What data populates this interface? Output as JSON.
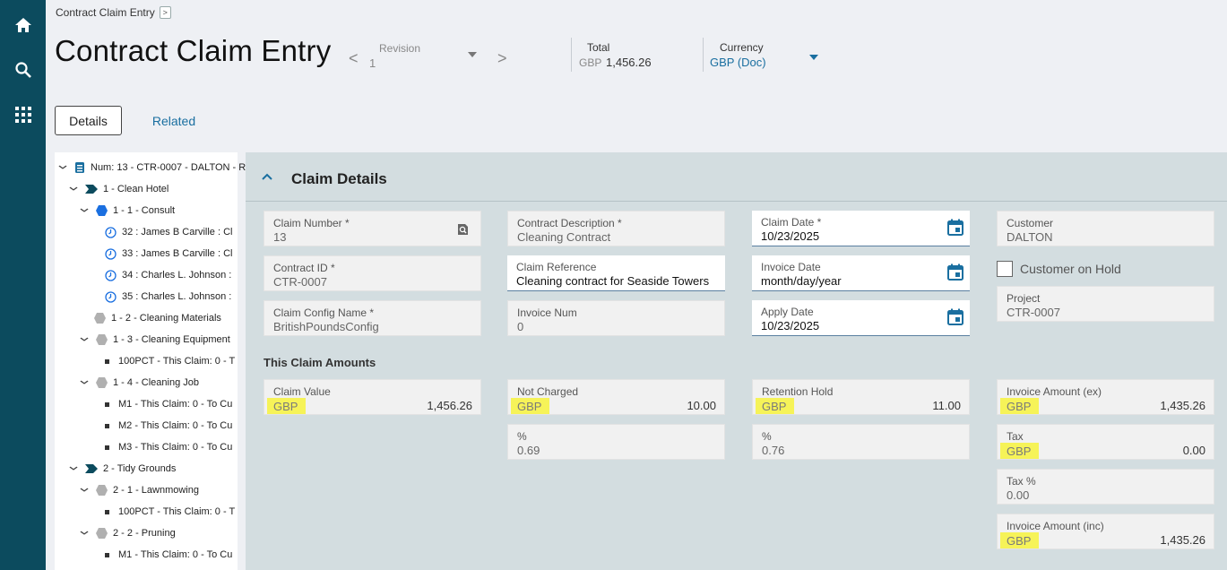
{
  "breadcrumb": {
    "label": "Contract Claim Entry",
    "expand": ">"
  },
  "page_title": "Contract Claim Entry",
  "revision": {
    "label": "Revision",
    "value": "1",
    "prev": "<",
    "next": ">"
  },
  "total": {
    "label": "Total",
    "currency": "GBP",
    "value": "1,456.26"
  },
  "currency": {
    "label": "Currency",
    "value": "GBP (Doc)"
  },
  "tabs": {
    "details": "Details",
    "related": "Related"
  },
  "tree": [
    {
      "label": "Num: 13 - CTR-0007 - DALTON - R",
      "icon": "contract-icon",
      "chev": "v"
    },
    {
      "label": "1 - Clean Hotel",
      "icon": "chevron-tag-icon",
      "chev": "v"
    },
    {
      "label": "1 - 1 - Consult",
      "icon": "hexagon-icon",
      "chev": "v"
    },
    {
      "label": "32 : James B Carville : Cl",
      "icon": "clock-icon",
      "chev": ""
    },
    {
      "label": "33 : James B Carville : Cl",
      "icon": "clock-icon",
      "chev": ""
    },
    {
      "label": "34 : Charles L. Johnson :",
      "icon": "clock-icon",
      "chev": ""
    },
    {
      "label": "35 : Charles L. Johnson :",
      "icon": "clock-icon",
      "chev": ""
    },
    {
      "label": "1 - 2 - Cleaning Materials",
      "icon": "hexagon-grey-icon",
      "chev": ""
    },
    {
      "label": "1 - 3 - Cleaning Equipment",
      "icon": "hexagon-grey-icon",
      "chev": "v"
    },
    {
      "label": "100PCT - This Claim: 0 - T",
      "icon": "bullet-icon",
      "chev": ""
    },
    {
      "label": "1 - 4 - Cleaning Job",
      "icon": "hexagon-grey-icon",
      "chev": "v"
    },
    {
      "label": "M1 - This Claim: 0 - To Cu",
      "icon": "bullet-icon",
      "chev": ""
    },
    {
      "label": "M2 - This Claim: 0 - To Cu",
      "icon": "bullet-icon",
      "chev": ""
    },
    {
      "label": "M3 - This Claim: 0 - To Cu",
      "icon": "bullet-icon",
      "chev": ""
    },
    {
      "label": "2 - Tidy Grounds",
      "icon": "chevron-tag-icon",
      "chev": "v"
    },
    {
      "label": "2 - 1 - Lawnmowing",
      "icon": "hexagon-grey-icon",
      "chev": "v"
    },
    {
      "label": "100PCT - This Claim: 0 - T",
      "icon": "bullet-icon",
      "chev": ""
    },
    {
      "label": "2 - 2 - Pruning",
      "icon": "hexagon-grey-icon",
      "chev": "v"
    },
    {
      "label": "M1 - This Claim: 0 - To Cu",
      "icon": "bullet-icon",
      "chev": ""
    }
  ],
  "section_title": "Claim Details",
  "fields": {
    "claim_number": {
      "label": "Claim Number *",
      "value": "13"
    },
    "contract_description": {
      "label": "Contract Description *",
      "value": "Cleaning Contract"
    },
    "claim_date": {
      "label": "Claim Date *",
      "value": "10/23/2025"
    },
    "customer": {
      "label": "Customer",
      "value": "DALTON"
    },
    "contract_id": {
      "label": "Contract ID *",
      "value": "CTR-0007"
    },
    "claim_reference": {
      "label": "Claim Reference",
      "value": "Cleaning contract for Seaside Towers"
    },
    "invoice_date": {
      "label": "Invoice Date",
      "value": "month/day/year"
    },
    "customer_on_hold": {
      "label": "Customer on Hold",
      "checked": false
    },
    "project": {
      "label": "Project",
      "value": "CTR-0007"
    },
    "claim_config_name": {
      "label": "Claim Config Name *",
      "value": "BritishPoundsConfig"
    },
    "invoice_num": {
      "label": "Invoice Num",
      "value": "0"
    },
    "apply_date": {
      "label": "Apply Date",
      "value": "10/23/2025"
    }
  },
  "amounts_title": "This Claim Amounts",
  "amounts": {
    "claim_value": {
      "label": "Claim Value",
      "currency": "GBP",
      "value": "1,456.26"
    },
    "not_charged": {
      "label": "Not Charged",
      "currency": "GBP",
      "value": "10.00"
    },
    "not_charged_pct": {
      "label": "%",
      "value": "0.69"
    },
    "retention_hold": {
      "label": "Retention Hold",
      "currency": "GBP",
      "value": "11.00"
    },
    "retention_pct": {
      "label": "%",
      "value": "0.76"
    },
    "invoice_amount_ex": {
      "label": "Invoice Amount (ex)",
      "currency": "GBP",
      "value": "1,435.26"
    },
    "tax": {
      "label": "Tax",
      "currency": "GBP",
      "value": "0.00"
    },
    "tax_pct": {
      "label": "Tax %",
      "value": "0.00"
    },
    "invoice_amount_inc": {
      "label": "Invoice Amount (inc)",
      "currency": "GBP",
      "value": "1,435.26"
    }
  },
  "colors": {
    "sidebar": "#0c4b5e",
    "accent": "#1a6fa0",
    "highlight": "#f7f33d",
    "panel": "#d3dde0"
  }
}
